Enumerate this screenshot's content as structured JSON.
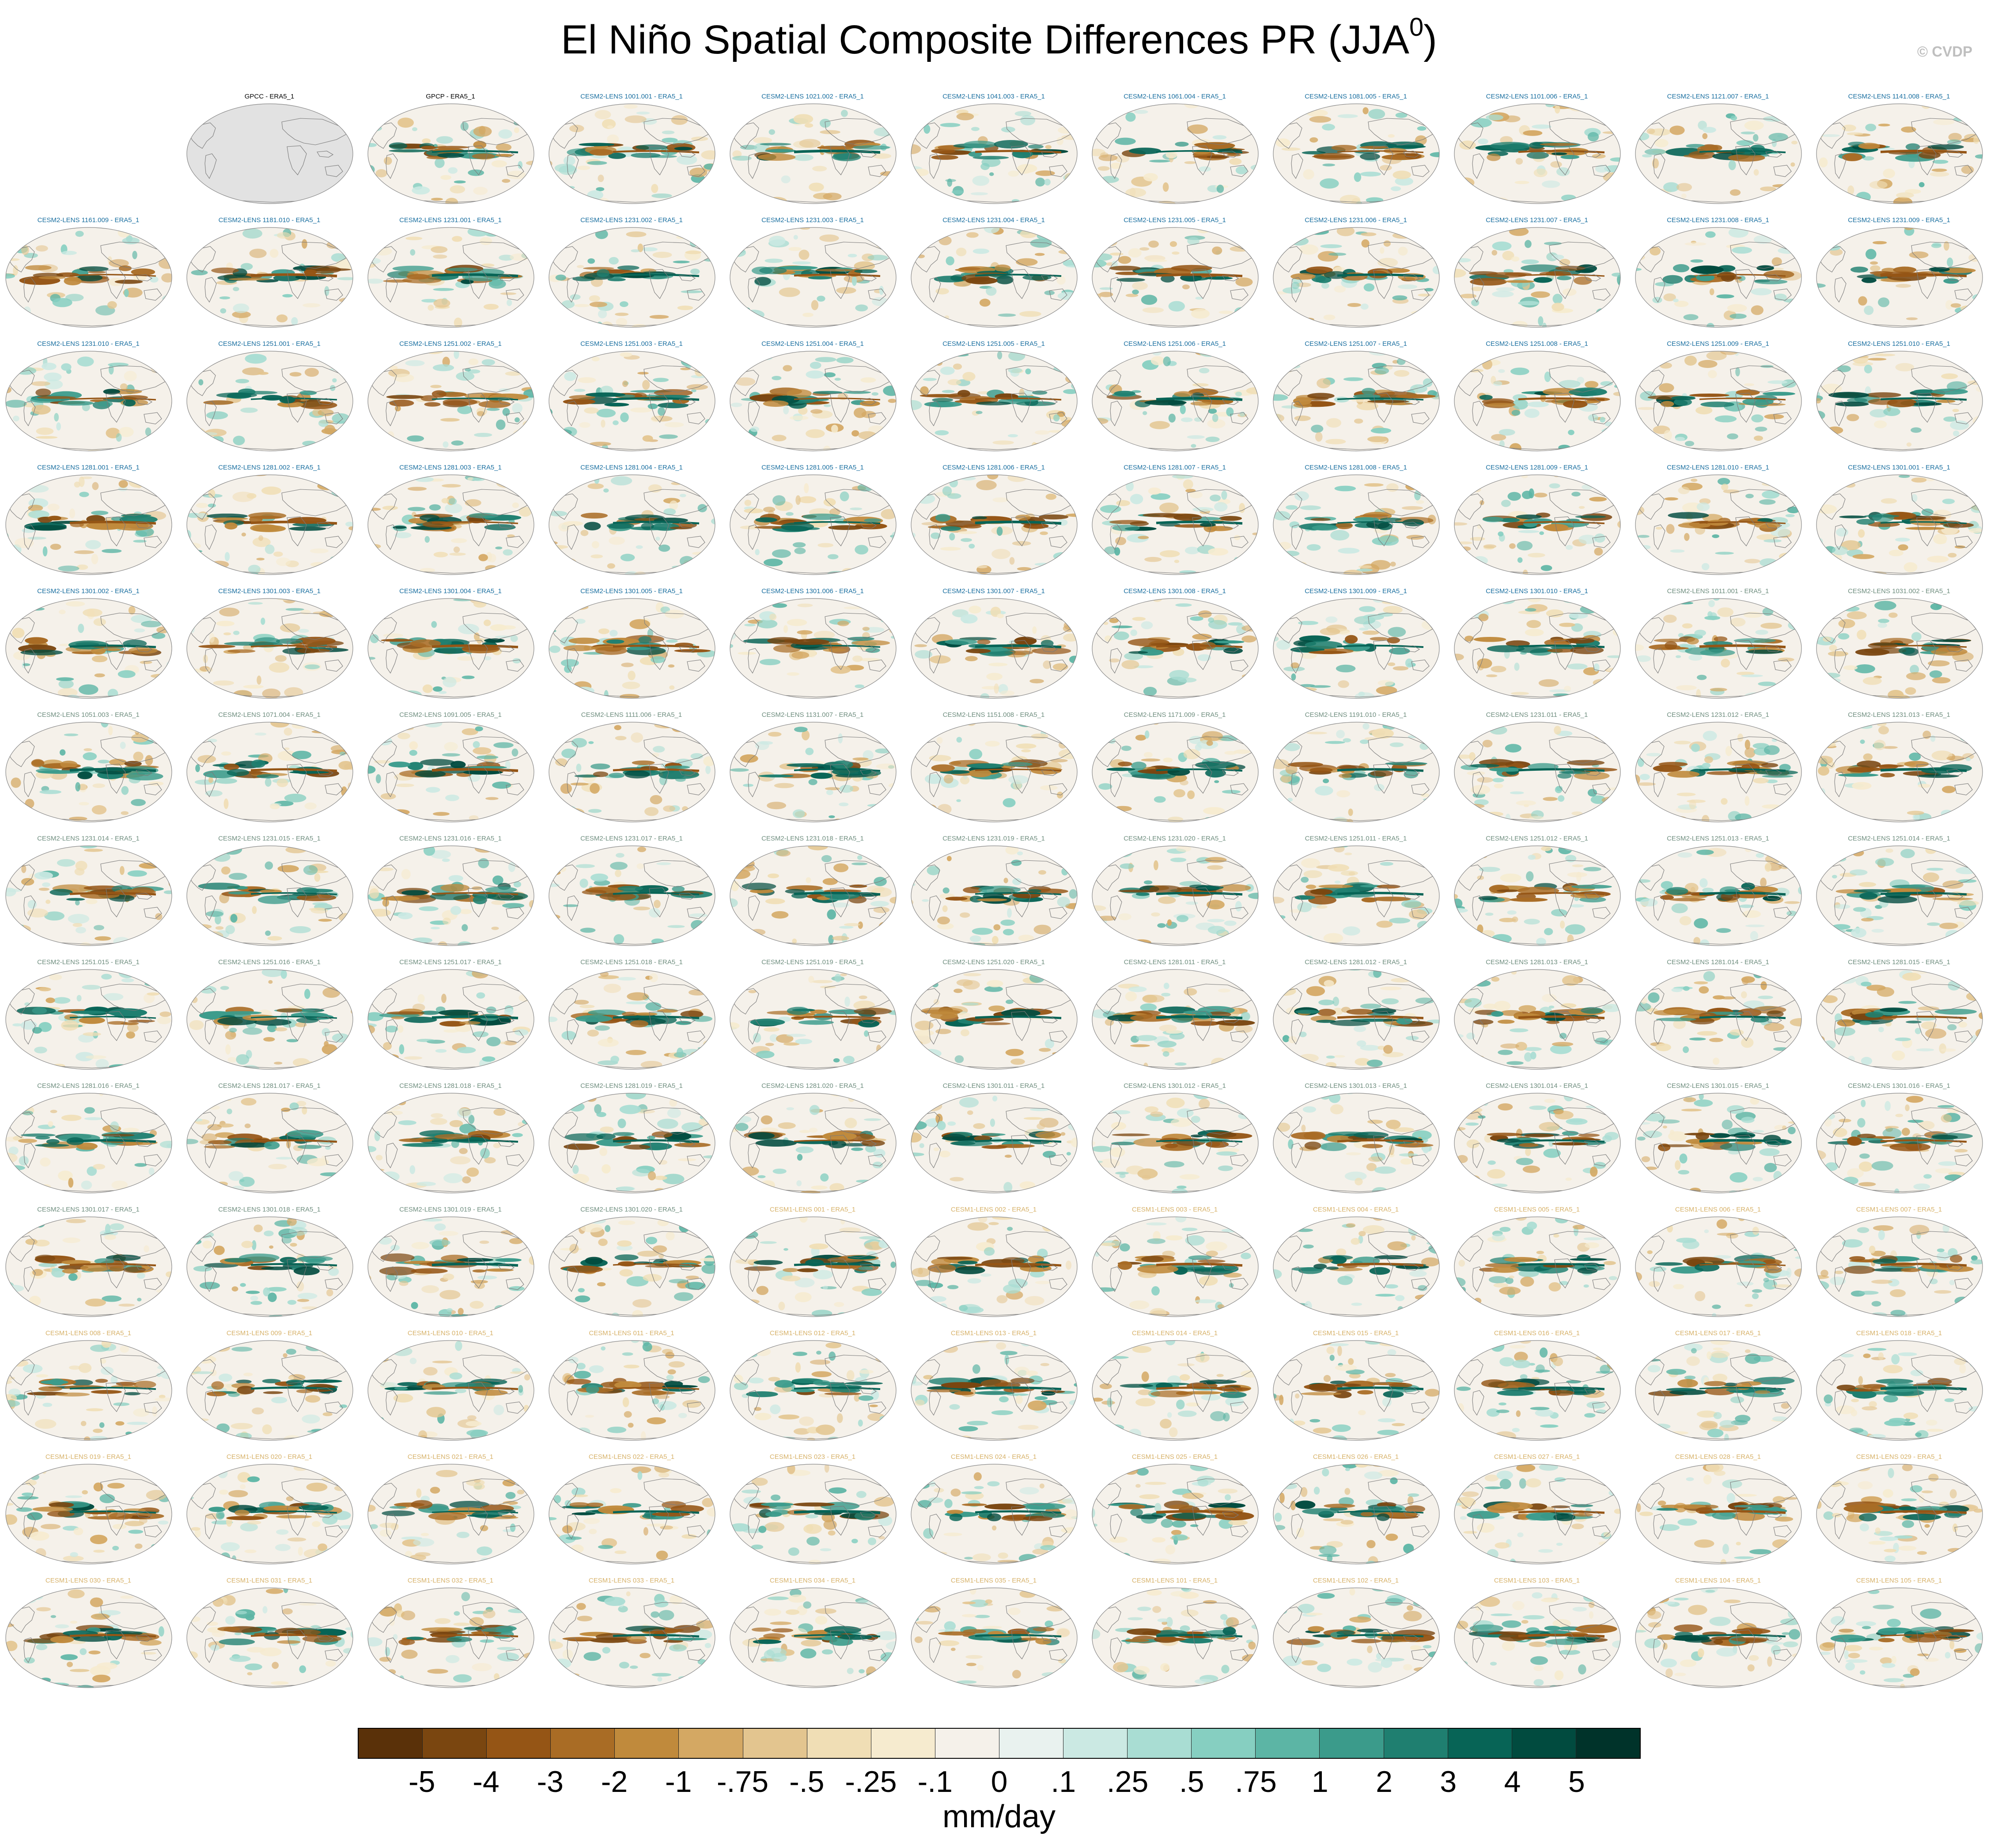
{
  "title": {
    "main": "El Niño Spatial Composite Differences PR (JJA",
    "superscript": "0",
    "close": ")"
  },
  "credit": "© CVDP",
  "units": "mm/day",
  "colorbar": {
    "labels": [
      "-5",
      "-4",
      "-3",
      "-2",
      "-1",
      "-.75",
      "-.5",
      "-.25",
      "-.1",
      "0",
      ".1",
      ".25",
      ".5",
      ".75",
      "1",
      "2",
      "3",
      "4",
      "5"
    ],
    "colors": [
      "#5a3109",
      "#7a4610",
      "#955515",
      "#a96c25",
      "#c08a3c",
      "#d4a863",
      "#e3c58f",
      "#f0deb5",
      "#f6ebcf",
      "#f5f1ea",
      "#e9f2ef",
      "#cbe9e3",
      "#a9ddd3",
      "#86cfc1",
      "#5cb5a5",
      "#3b9b8b",
      "#1f7f70",
      "#076456",
      "#014b3f",
      "#00332a"
    ]
  },
  "panels": [
    {
      "label": "GPCC - ERA5_1",
      "group": "obs",
      "empty": true
    },
    {
      "label": "GPCP - ERA5_1",
      "group": "obs"
    },
    {
      "label": "CESM2-LENS 1001.001 - ERA5_1",
      "group": "c2"
    },
    {
      "label": "CESM2-LENS 1021.002 - ERA5_1",
      "group": "c2"
    },
    {
      "label": "CESM2-LENS 1041.003 - ERA5_1",
      "group": "c2"
    },
    {
      "label": "CESM2-LENS 1061.004 - ERA5_1",
      "group": "c2"
    },
    {
      "label": "CESM2-LENS 1081.005 - ERA5_1",
      "group": "c2"
    },
    {
      "label": "CESM2-LENS 1101.006 - ERA5_1",
      "group": "c2"
    },
    {
      "label": "CESM2-LENS 1121.007 - ERA5_1",
      "group": "c2"
    },
    {
      "label": "CESM2-LENS 1141.008 - ERA5_1",
      "group": "c2"
    },
    {
      "label": "CESM2-LENS 1161.009 - ERA5_1",
      "group": "c2"
    },
    {
      "label": "CESM2-LENS 1181.010 - ERA5_1",
      "group": "c2"
    },
    {
      "label": "CESM2-LENS 1231.001 - ERA5_1",
      "group": "c2"
    },
    {
      "label": "CESM2-LENS 1231.002 - ERA5_1",
      "group": "c2"
    },
    {
      "label": "CESM2-LENS 1231.003 - ERA5_1",
      "group": "c2"
    },
    {
      "label": "CESM2-LENS 1231.004 - ERA5_1",
      "group": "c2"
    },
    {
      "label": "CESM2-LENS 1231.005 - ERA5_1",
      "group": "c2"
    },
    {
      "label": "CESM2-LENS 1231.006 - ERA5_1",
      "group": "c2"
    },
    {
      "label": "CESM2-LENS 1231.007 - ERA5_1",
      "group": "c2"
    },
    {
      "label": "CESM2-LENS 1231.008 - ERA5_1",
      "group": "c2"
    },
    {
      "label": "CESM2-LENS 1231.009 - ERA5_1",
      "group": "c2"
    },
    {
      "label": "CESM2-LENS 1231.010 - ERA5_1",
      "group": "c2"
    },
    {
      "label": "CESM2-LENS 1251.001 - ERA5_1",
      "group": "c2"
    },
    {
      "label": "CESM2-LENS 1251.002 - ERA5_1",
      "group": "c2"
    },
    {
      "label": "CESM2-LENS 1251.003 - ERA5_1",
      "group": "c2"
    },
    {
      "label": "CESM2-LENS 1251.004 - ERA5_1",
      "group": "c2"
    },
    {
      "label": "CESM2-LENS 1251.005 - ERA5_1",
      "group": "c2"
    },
    {
      "label": "CESM2-LENS 1251.006 - ERA5_1",
      "group": "c2"
    },
    {
      "label": "CESM2-LENS 1251.007 - ERA5_1",
      "group": "c2"
    },
    {
      "label": "CESM2-LENS 1251.008 - ERA5_1",
      "group": "c2"
    },
    {
      "label": "CESM2-LENS 1251.009 - ERA5_1",
      "group": "c2"
    },
    {
      "label": "CESM2-LENS 1251.010 - ERA5_1",
      "group": "c2"
    },
    {
      "label": "CESM2-LENS 1281.001 - ERA5_1",
      "group": "c2"
    },
    {
      "label": "CESM2-LENS 1281.002 - ERA5_1",
      "group": "c2"
    },
    {
      "label": "CESM2-LENS 1281.003 - ERA5_1",
      "group": "c2"
    },
    {
      "label": "CESM2-LENS 1281.004 - ERA5_1",
      "group": "c2"
    },
    {
      "label": "CESM2-LENS 1281.005 - ERA5_1",
      "group": "c2"
    },
    {
      "label": "CESM2-LENS 1281.006 - ERA5_1",
      "group": "c2"
    },
    {
      "label": "CESM2-LENS 1281.007 - ERA5_1",
      "group": "c2"
    },
    {
      "label": "CESM2-LENS 1281.008 - ERA5_1",
      "group": "c2"
    },
    {
      "label": "CESM2-LENS 1281.009 - ERA5_1",
      "group": "c2"
    },
    {
      "label": "CESM2-LENS 1281.010 - ERA5_1",
      "group": "c2"
    },
    {
      "label": "CESM2-LENS 1301.001 - ERA5_1",
      "group": "c2"
    },
    {
      "label": "CESM2-LENS 1301.002 - ERA5_1",
      "group": "c2"
    },
    {
      "label": "CESM2-LENS 1301.003 - ERA5_1",
      "group": "c2"
    },
    {
      "label": "CESM2-LENS 1301.004 - ERA5_1",
      "group": "c2"
    },
    {
      "label": "CESM2-LENS 1301.005 - ERA5_1",
      "group": "c2"
    },
    {
      "label": "CESM2-LENS 1301.006 - ERA5_1",
      "group": "c2"
    },
    {
      "label": "CESM2-LENS 1301.007 - ERA5_1",
      "group": "c2"
    },
    {
      "label": "CESM2-LENS 1301.008 - ERA5_1",
      "group": "c2"
    },
    {
      "label": "CESM2-LENS 1301.009 - ERA5_1",
      "group": "c2"
    },
    {
      "label": "CESM2-LENS 1301.010 - ERA5_1",
      "group": "c2"
    },
    {
      "label": "CESM2-LENS 1011.001 - ERA5_1",
      "group": "c2s"
    },
    {
      "label": "CESM2-LENS 1031.002 - ERA5_1",
      "group": "c2s"
    },
    {
      "label": "CESM2-LENS 1051.003 - ERA5_1",
      "group": "c2s"
    },
    {
      "label": "CESM2-LENS 1071.004 - ERA5_1",
      "group": "c2s"
    },
    {
      "label": "CESM2-LENS 1091.005 - ERA5_1",
      "group": "c2s"
    },
    {
      "label": "CESM2-LENS 1111.006 - ERA5_1",
      "group": "c2s"
    },
    {
      "label": "CESM2-LENS 1131.007 - ERA5_1",
      "group": "c2s"
    },
    {
      "label": "CESM2-LENS 1151.008 - ERA5_1",
      "group": "c2s"
    },
    {
      "label": "CESM2-LENS 1171.009 - ERA5_1",
      "group": "c2s"
    },
    {
      "label": "CESM2-LENS 1191.010 - ERA5_1",
      "group": "c2s"
    },
    {
      "label": "CESM2-LENS 1231.011 - ERA5_1",
      "group": "c2s"
    },
    {
      "label": "CESM2-LENS 1231.012 - ERA5_1",
      "group": "c2s"
    },
    {
      "label": "CESM2-LENS 1231.013 - ERA5_1",
      "group": "c2s"
    },
    {
      "label": "CESM2-LENS 1231.014 - ERA5_1",
      "group": "c2s"
    },
    {
      "label": "CESM2-LENS 1231.015 - ERA5_1",
      "group": "c2s"
    },
    {
      "label": "CESM2-LENS 1231.016 - ERA5_1",
      "group": "c2s"
    },
    {
      "label": "CESM2-LENS 1231.017 - ERA5_1",
      "group": "c2s"
    },
    {
      "label": "CESM2-LENS 1231.018 - ERA5_1",
      "group": "c2s"
    },
    {
      "label": "CESM2-LENS 1231.019 - ERA5_1",
      "group": "c2s"
    },
    {
      "label": "CESM2-LENS 1231.020 - ERA5_1",
      "group": "c2s"
    },
    {
      "label": "CESM2-LENS 1251.011 - ERA5_1",
      "group": "c2s"
    },
    {
      "label": "CESM2-LENS 1251.012 - ERA5_1",
      "group": "c2s"
    },
    {
      "label": "CESM2-LENS 1251.013 - ERA5_1",
      "group": "c2s"
    },
    {
      "label": "CESM2-LENS 1251.014 - ERA5_1",
      "group": "c2s"
    },
    {
      "label": "CESM2-LENS 1251.015 - ERA5_1",
      "group": "c2s"
    },
    {
      "label": "CESM2-LENS 1251.016 - ERA5_1",
      "group": "c2s"
    },
    {
      "label": "CESM2-LENS 1251.017 - ERA5_1",
      "group": "c2s"
    },
    {
      "label": "CESM2-LENS 1251.018 - ERA5_1",
      "group": "c2s"
    },
    {
      "label": "CESM2-LENS 1251.019 - ERA5_1",
      "group": "c2s"
    },
    {
      "label": "CESM2-LENS 1251.020 - ERA5_1",
      "group": "c2s"
    },
    {
      "label": "CESM2-LENS 1281.011 - ERA5_1",
      "group": "c2s"
    },
    {
      "label": "CESM2-LENS 1281.012 - ERA5_1",
      "group": "c2s"
    },
    {
      "label": "CESM2-LENS 1281.013 - ERA5_1",
      "group": "c2s"
    },
    {
      "label": "CESM2-LENS 1281.014 - ERA5_1",
      "group": "c2s"
    },
    {
      "label": "CESM2-LENS 1281.015 - ERA5_1",
      "group": "c2s"
    },
    {
      "label": "CESM2-LENS 1281.016 - ERA5_1",
      "group": "c2s"
    },
    {
      "label": "CESM2-LENS 1281.017 - ERA5_1",
      "group": "c2s"
    },
    {
      "label": "CESM2-LENS 1281.018 - ERA5_1",
      "group": "c2s"
    },
    {
      "label": "CESM2-LENS 1281.019 - ERA5_1",
      "group": "c2s"
    },
    {
      "label": "CESM2-LENS 1281.020 - ERA5_1",
      "group": "c2s"
    },
    {
      "label": "CESM2-LENS 1301.011 - ERA5_1",
      "group": "c2s"
    },
    {
      "label": "CESM2-LENS 1301.012 - ERA5_1",
      "group": "c2s"
    },
    {
      "label": "CESM2-LENS 1301.013 - ERA5_1",
      "group": "c2s"
    },
    {
      "label": "CESM2-LENS 1301.014 - ERA5_1",
      "group": "c2s"
    },
    {
      "label": "CESM2-LENS 1301.015 - ERA5_1",
      "group": "c2s"
    },
    {
      "label": "CESM2-LENS 1301.016 - ERA5_1",
      "group": "c2s"
    },
    {
      "label": "CESM2-LENS 1301.017 - ERA5_1",
      "group": "c2s"
    },
    {
      "label": "CESM2-LENS 1301.018 - ERA5_1",
      "group": "c2s"
    },
    {
      "label": "CESM2-LENS 1301.019 - ERA5_1",
      "group": "c2s"
    },
    {
      "label": "CESM2-LENS 1301.020 - ERA5_1",
      "group": "c2s"
    },
    {
      "label": "CESM1-LENS 001 - ERA5_1",
      "group": "c1"
    },
    {
      "label": "CESM1-LENS 002 - ERA5_1",
      "group": "c1"
    },
    {
      "label": "CESM1-LENS 003 - ERA5_1",
      "group": "c1"
    },
    {
      "label": "CESM1-LENS 004 - ERA5_1",
      "group": "c1"
    },
    {
      "label": "CESM1-LENS 005 - ERA5_1",
      "group": "c1"
    },
    {
      "label": "CESM1-LENS 006 - ERA5_1",
      "group": "c1"
    },
    {
      "label": "CESM1-LENS 007 - ERA5_1",
      "group": "c1"
    },
    {
      "label": "CESM1-LENS 008 - ERA5_1",
      "group": "c1"
    },
    {
      "label": "CESM1-LENS 009 - ERA5_1",
      "group": "c1"
    },
    {
      "label": "CESM1-LENS 010 - ERA5_1",
      "group": "c1"
    },
    {
      "label": "CESM1-LENS 011 - ERA5_1",
      "group": "c1"
    },
    {
      "label": "CESM1-LENS 012 - ERA5_1",
      "group": "c1"
    },
    {
      "label": "CESM1-LENS 013 - ERA5_1",
      "group": "c1"
    },
    {
      "label": "CESM1-LENS 014 - ERA5_1",
      "group": "c1"
    },
    {
      "label": "CESM1-LENS 015 - ERA5_1",
      "group": "c1"
    },
    {
      "label": "CESM1-LENS 016 - ERA5_1",
      "group": "c1"
    },
    {
      "label": "CESM1-LENS 017 - ERA5_1",
      "group": "c1"
    },
    {
      "label": "CESM1-LENS 018 - ERA5_1",
      "group": "c1"
    },
    {
      "label": "CESM1-LENS 019 - ERA5_1",
      "group": "c1"
    },
    {
      "label": "CESM1-LENS 020 - ERA5_1",
      "group": "c1"
    },
    {
      "label": "CESM1-LENS 021 - ERA5_1",
      "group": "c1"
    },
    {
      "label": "CESM1-LENS 022 - ERA5_1",
      "group": "c1"
    },
    {
      "label": "CESM1-LENS 023 - ERA5_1",
      "group": "c1"
    },
    {
      "label": "CESM1-LENS 024 - ERA5_1",
      "group": "c1"
    },
    {
      "label": "CESM1-LENS 025 - ERA5_1",
      "group": "c1"
    },
    {
      "label": "CESM1-LENS 026 - ERA5_1",
      "group": "c1"
    },
    {
      "label": "CESM1-LENS 027 - ERA5_1",
      "group": "c1"
    },
    {
      "label": "CESM1-LENS 028 - ERA5_1",
      "group": "c1"
    },
    {
      "label": "CESM1-LENS 029 - ERA5_1",
      "group": "c1"
    },
    {
      "label": "CESM1-LENS 030 - ERA5_1",
      "group": "c1"
    },
    {
      "label": "CESM1-LENS 031 - ERA5_1",
      "group": "c1"
    },
    {
      "label": "CESM1-LENS 032 - ERA5_1",
      "group": "c1"
    },
    {
      "label": "CESM1-LENS 033 - ERA5_1",
      "group": "c1"
    },
    {
      "label": "CESM1-LENS 034 - ERA5_1",
      "group": "c1"
    },
    {
      "label": "CESM1-LENS 035 - ERA5_1",
      "group": "c1"
    },
    {
      "label": "CESM1-LENS 101 - ERA5_1",
      "group": "c1"
    },
    {
      "label": "CESM1-LENS 102 - ERA5_1",
      "group": "c1"
    },
    {
      "label": "CESM1-LENS 103 - ERA5_1",
      "group": "c1"
    },
    {
      "label": "CESM1-LENS 104 - ERA5_1",
      "group": "c1"
    },
    {
      "label": "CESM1-LENS 105 - ERA5_1",
      "group": "c1"
    }
  ]
}
